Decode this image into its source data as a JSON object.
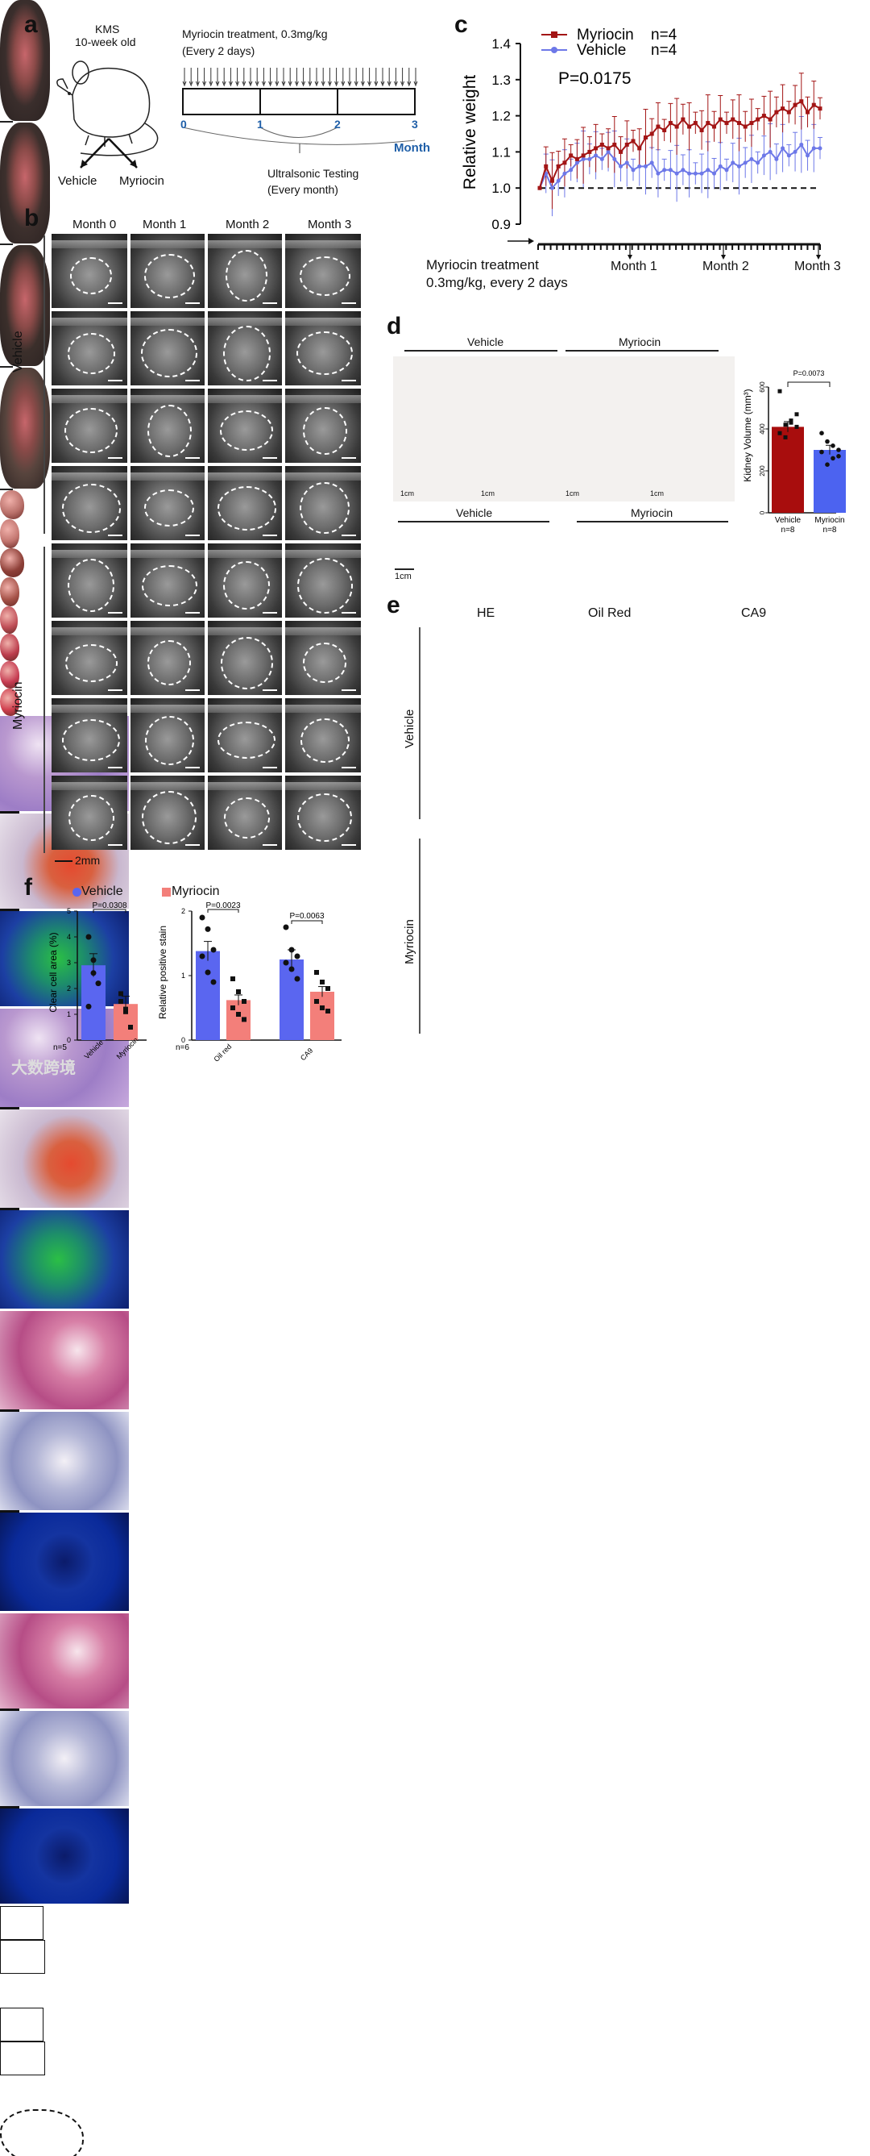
{
  "panels": {
    "a": "a",
    "b": "b",
    "c": "c",
    "d": "d",
    "e": "e",
    "f": "f"
  },
  "a": {
    "strain": "KMS",
    "age": "10-week old",
    "arm1": "Vehicle",
    "arm2": "Myriocin",
    "treatment": "Myriocin treatment, 0.3mg/kg",
    "frequency": "(Every 2 days)",
    "ticks": [
      "0",
      "1",
      "2",
      "3"
    ],
    "unit": "Month",
    "testing": "Ultralsonic Testing",
    "testing_freq": "(Every month)"
  },
  "b": {
    "months": [
      "Month 0",
      "Month 1",
      "Month 2",
      "Month 3"
    ],
    "group1": "Vehicle",
    "group2": "Myriocin",
    "scale": "2mm"
  },
  "c": {
    "legend": [
      {
        "name": "Myriocin",
        "n": "n=4",
        "color": "#a31515"
      },
      {
        "name": "Vehicle",
        "n": "n=4",
        "color": "#6d78e8"
      }
    ],
    "pvalue": "P=0.0175",
    "ylabel": "Relative weight",
    "yticks": [
      "1.4",
      "1.3",
      "1.2",
      "1.1",
      "1.0",
      "0.9"
    ],
    "treat1": "Myriocin treatment",
    "treat2": "0.3mg/kg, every 2 days",
    "months": [
      "Month 1",
      "Month 2",
      "Month 3"
    ]
  },
  "chart_data": [
    {
      "type": "line",
      "title": "",
      "ylabel": "Relative weight",
      "ylim": [
        0.9,
        1.4
      ],
      "x": [
        0,
        1,
        2,
        3,
        4,
        5,
        6,
        7,
        8,
        9,
        10,
        11,
        12,
        13,
        14,
        15,
        16,
        17,
        18,
        19,
        20,
        21,
        22,
        23,
        24,
        25,
        26,
        27,
        28,
        29,
        30,
        31,
        32,
        33,
        34,
        35,
        36,
        37,
        38,
        39,
        40,
        41,
        42,
        43,
        44,
        45
      ],
      "series": [
        {
          "name": "Myriocin",
          "values": [
            1.0,
            1.06,
            1.02,
            1.06,
            1.07,
            1.09,
            1.08,
            1.09,
            1.1,
            1.11,
            1.12,
            1.11,
            1.12,
            1.1,
            1.12,
            1.13,
            1.11,
            1.14,
            1.15,
            1.17,
            1.16,
            1.18,
            1.17,
            1.19,
            1.17,
            1.18,
            1.16,
            1.18,
            1.17,
            1.19,
            1.18,
            1.19,
            1.18,
            1.17,
            1.18,
            1.19,
            1.2,
            1.19,
            1.21,
            1.22,
            1.21,
            1.23,
            1.24,
            1.21,
            1.23,
            1.22
          ]
        },
        {
          "name": "Vehicle",
          "values": [
            1.0,
            1.04,
            1.0,
            1.02,
            1.04,
            1.05,
            1.07,
            1.08,
            1.08,
            1.09,
            1.08,
            1.1,
            1.08,
            1.06,
            1.07,
            1.05,
            1.06,
            1.06,
            1.07,
            1.04,
            1.05,
            1.05,
            1.04,
            1.05,
            1.04,
            1.04,
            1.04,
            1.05,
            1.04,
            1.06,
            1.05,
            1.07,
            1.06,
            1.07,
            1.08,
            1.07,
            1.09,
            1.1,
            1.08,
            1.11,
            1.09,
            1.1,
            1.12,
            1.09,
            1.11,
            1.11
          ]
        }
      ],
      "baseline": 1.0
    },
    {
      "type": "bar",
      "title": "P=0.0073",
      "ylabel": "Kidney Volume (mm³)",
      "categories": [
        "Vehicle",
        "Myriocin"
      ],
      "n": [
        "n=8",
        "n=8"
      ],
      "values": [
        410,
        300
      ],
      "points": [
        [
          580,
          420,
          440,
          410,
          380,
          360,
          430,
          470
        ],
        [
          380,
          340,
          260,
          300,
          290,
          230,
          320,
          270
        ]
      ],
      "ylim": [
        0,
        600
      ],
      "yticks": [
        "0",
        "200",
        "400",
        "600"
      ],
      "colors": [
        "#a80d0d",
        "#4c63f0"
      ]
    },
    {
      "type": "bar",
      "title": "Clear cell area",
      "ylabel": "Clear cell area (%)",
      "pvalue": "P=0.0308",
      "categories": [
        "Vehicle",
        "Myriocin"
      ],
      "values": [
        2.9,
        1.4
      ],
      "points": [
        [
          4.0,
          2.6,
          2.2,
          1.3,
          3.1
        ],
        [
          1.8,
          1.1,
          0.5,
          1.5,
          1.2
        ]
      ],
      "ylim": [
        0,
        5
      ],
      "yticks": [
        "0",
        "1",
        "2",
        "3",
        "4",
        "5"
      ],
      "n": "n=5"
    },
    {
      "type": "bar",
      "title": "Relative positive stain",
      "ylabel": "Relative positive stain",
      "categories": [
        "Oil red",
        "CA9"
      ],
      "series": [
        {
          "name": "Vehicle",
          "values": [
            1.38,
            1.25
          ],
          "points": [
            [
              1.9,
              1.72,
              1.4,
              1.3,
              1.05,
              0.9
            ],
            [
              1.75,
              1.4,
              1.3,
              1.2,
              1.1,
              0.95
            ]
          ]
        },
        {
          "name": "Myriocin",
          "values": [
            0.62,
            0.75
          ],
          "points": [
            [
              0.95,
              0.75,
              0.6,
              0.5,
              0.4,
              0.32
            ],
            [
              1.05,
              0.9,
              0.8,
              0.6,
              0.5,
              0.45
            ]
          ]
        }
      ],
      "pvalues": [
        "P=0.0023",
        "P=0.0063"
      ],
      "ylim": [
        0,
        2
      ],
      "yticks": [
        "0",
        "1",
        "2"
      ],
      "n": "n=6"
    }
  ],
  "d": {
    "mice_groups": [
      "Vehicle",
      "Myriocin"
    ],
    "kidney_groups": [
      "Vehicle",
      "Myriocin"
    ],
    "cm": "1cm"
  },
  "e": {
    "columns": [
      "HE",
      "Oil Red",
      "CA9"
    ],
    "rows": [
      "Vehicle",
      "Myriocin"
    ]
  },
  "f": {
    "legend1": "Vehicle",
    "legend2": "Myriocin",
    "n1": "n=5",
    "n2": "n=6"
  },
  "watermark": "大数跨境",
  "colors": {
    "myriocin": "#a31515",
    "vehicle": "#6d78e8",
    "bar_vehicle": "#5a66f0",
    "bar_myriocin": "#f37f7a"
  }
}
